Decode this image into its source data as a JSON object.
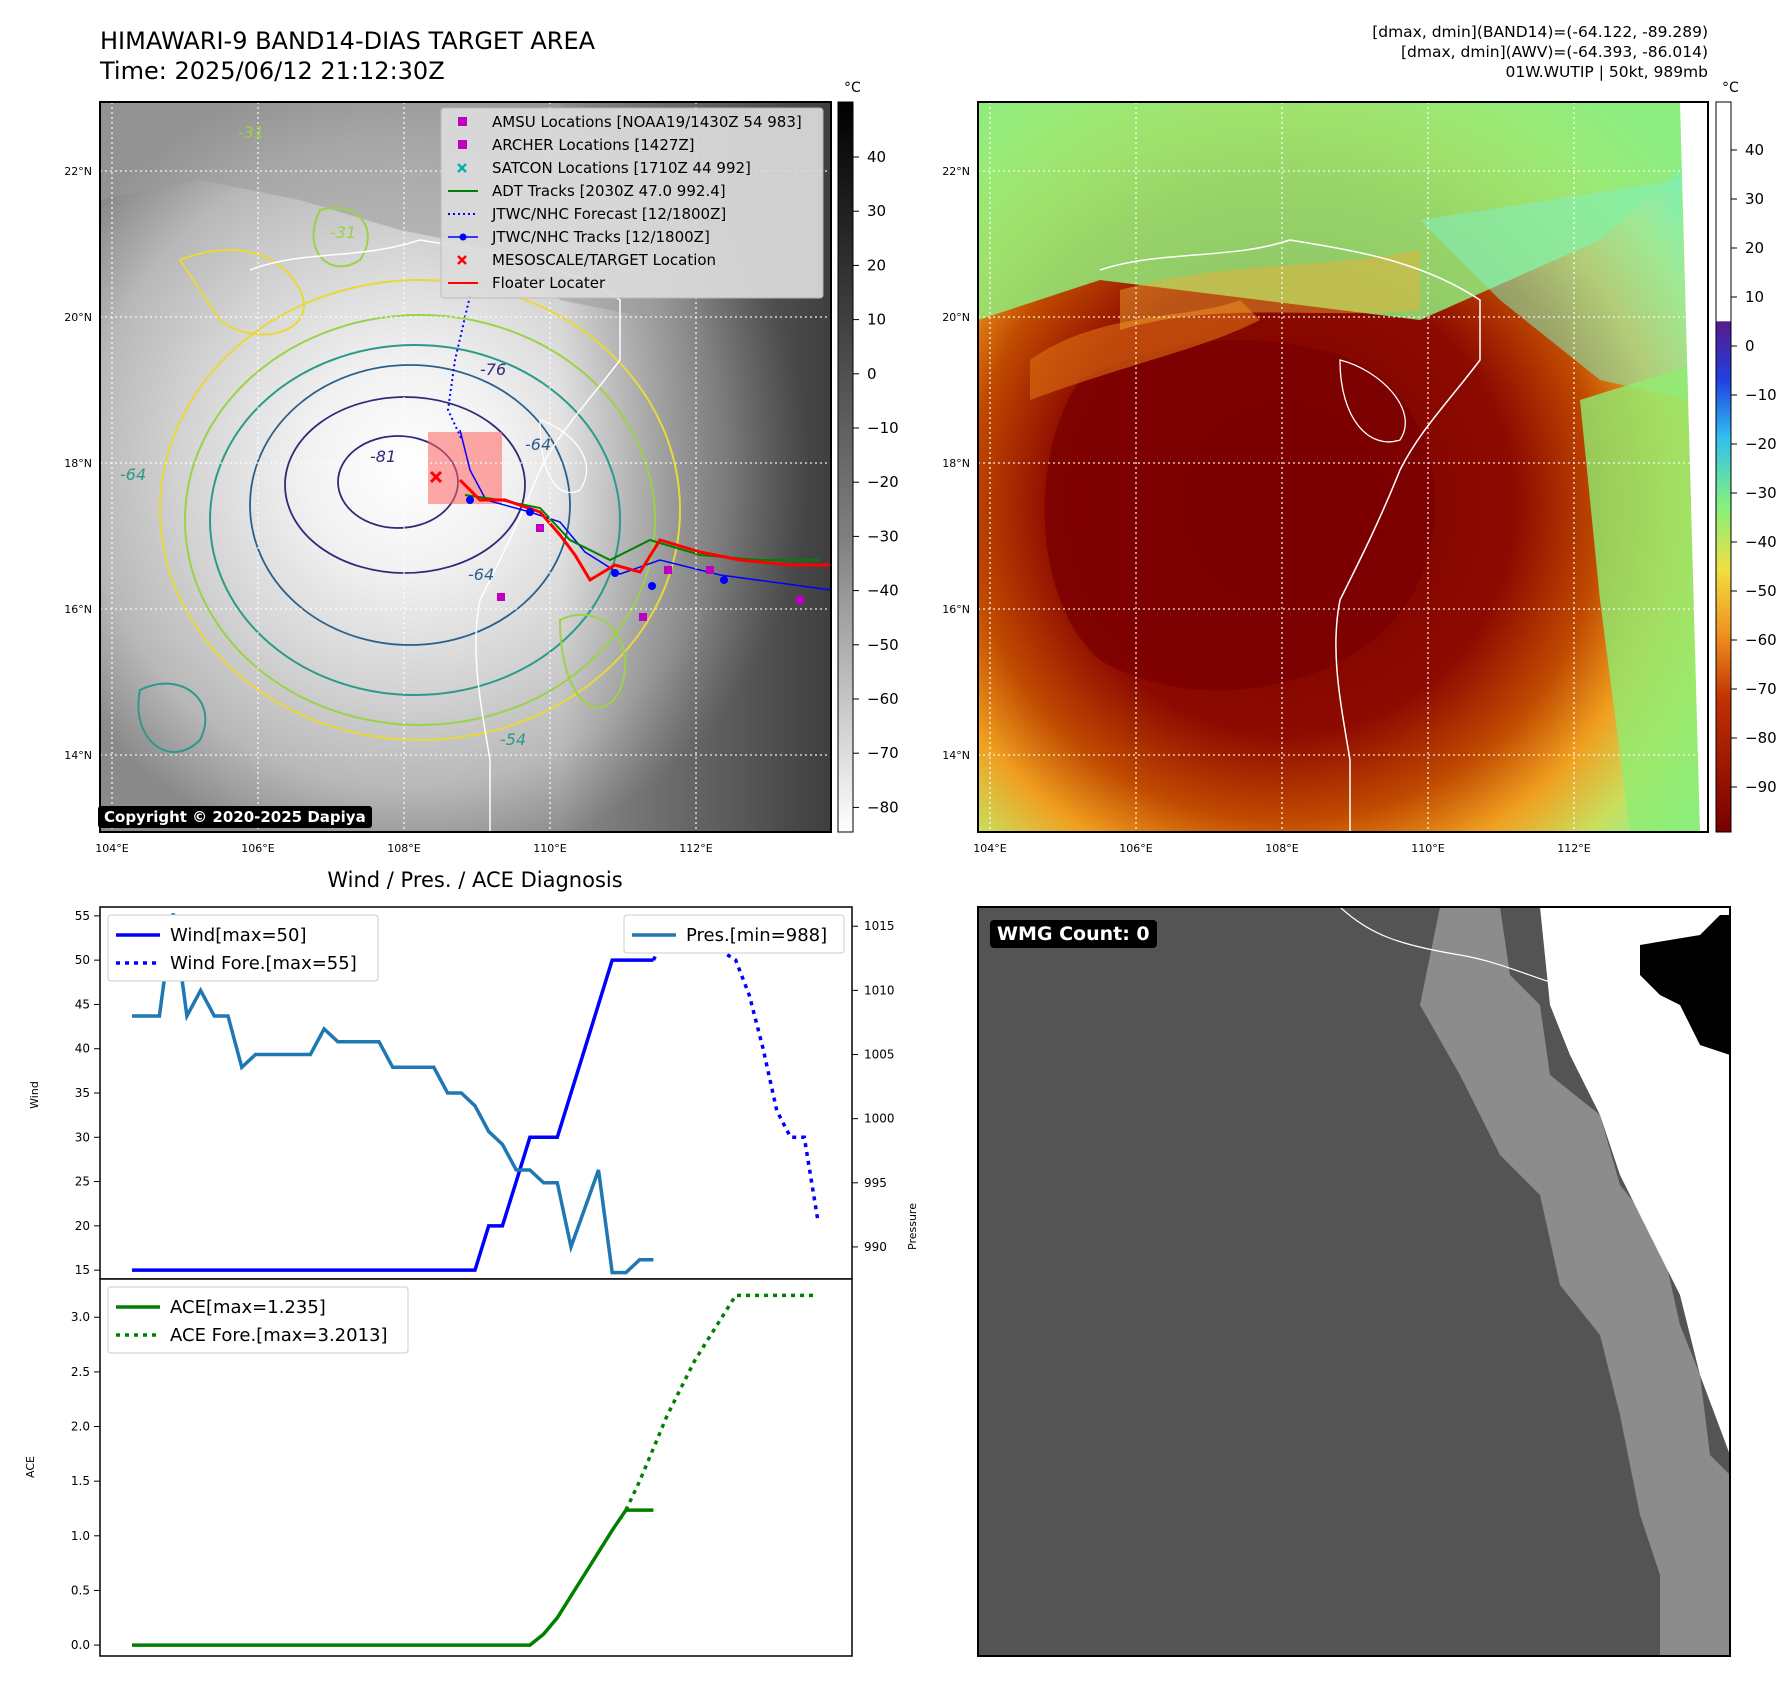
{
  "header": {
    "title_line1": "HIMAWARI-9 BAND14-DIAS TARGET AREA",
    "title_line2": "Time: 2025/06/12 21:12:30Z",
    "info_line1": "[dmax, dmin](BAND14)=(-64.122, -89.289)",
    "info_line2": "[dmax, dmin](AWV)=(-64.393, -86.014)",
    "info_line3": "01W.WUTIP | 50kt, 989mb"
  },
  "map_axes": {
    "lon_labels": [
      "104°E",
      "106°E",
      "108°E",
      "110°E",
      "112°E"
    ],
    "lat_labels": [
      "22°N",
      "20°N",
      "18°N",
      "16°N",
      "14°N"
    ]
  },
  "band14_panel": {
    "colorbar_unit": "°C",
    "colorbar_ticks": [
      "40",
      "30",
      "20",
      "10",
      "0",
      "−10",
      "−20",
      "−30",
      "−40",
      "−50",
      "−60",
      "−70",
      "−80"
    ],
    "copyright": "Copyright © 2020-2025 Dapiya",
    "contour_labels": [
      "-81",
      "-76",
      "-64",
      "-64",
      "-31",
      "-31",
      "-64",
      "-54"
    ],
    "legend": [
      {
        "label": "AMSU Locations [NOAA19/1430Z 54 983]",
        "color": "#c000c0",
        "marker": "square"
      },
      {
        "label": "ARCHER Locations [1427Z]",
        "color": "#c000c0",
        "marker": "square"
      },
      {
        "label": "SATCON Locations [1710Z 44 992]",
        "color": "#00b0b0",
        "marker": "x"
      },
      {
        "label": "ADT Tracks [2030Z 47.0 992.4]",
        "color": "#008000",
        "marker": "line"
      },
      {
        "label": "JTWC/NHC Forecast [12/1800Z]",
        "color": "#0000ff",
        "marker": "dotted"
      },
      {
        "label": "JTWC/NHC Tracks [12/1800Z]",
        "color": "#0000ff",
        "marker": "line-dot"
      },
      {
        "label": "MESOSCALE/TARGET Location",
        "color": "#ff0000",
        "marker": "x"
      },
      {
        "label": "Floater Locater",
        "color": "#ff0000",
        "marker": "line"
      }
    ]
  },
  "awv_panel": {
    "colorbar_unit": "°C",
    "colorbar_ticks": [
      "40",
      "30",
      "20",
      "10",
      "0",
      "−10",
      "−20",
      "−30",
      "−40",
      "−50",
      "−60",
      "−70",
      "−80",
      "−90"
    ]
  },
  "wmg_panel": {
    "label": "WMG Count: 0"
  },
  "chart_data": [
    {
      "type": "line",
      "title": "Wind / Pres. / ACE Diagnosis",
      "ylabel": "Wind",
      "y2label": "Pressure",
      "ylim": [
        14,
        56
      ],
      "y2lim": [
        987.5,
        1016.5
      ],
      "yticks": [
        15,
        20,
        25,
        30,
        35,
        40,
        45,
        50,
        55
      ],
      "y2ticks": [
        990,
        995,
        1000,
        1005,
        1010,
        1015
      ],
      "legend_left": "top-left",
      "legend_right": "top-right",
      "series": [
        {
          "name": "Wind[max=50]",
          "axis": "left",
          "style": "solid",
          "color": "#0000ff",
          "x": [
            0,
            1,
            2,
            3,
            4,
            5,
            6,
            7,
            8,
            9,
            10,
            11,
            12,
            13,
            14,
            15,
            16,
            17,
            18,
            19,
            20,
            21,
            22,
            23,
            24,
            25,
            26,
            27,
            28,
            29,
            30,
            31,
            32,
            33,
            34,
            35,
            36,
            37,
            38
          ],
          "values": [
            15,
            15,
            15,
            15,
            15,
            15,
            15,
            15,
            15,
            15,
            15,
            15,
            15,
            15,
            15,
            15,
            15,
            15,
            15,
            15,
            15,
            15,
            15,
            15,
            15,
            15,
            20,
            20,
            25,
            30,
            30,
            30,
            35,
            40,
            45,
            50,
            50,
            50,
            50
          ]
        },
        {
          "name": "Wind Fore.[max=55]",
          "axis": "left",
          "style": "dotted",
          "color": "#0000ff",
          "x": [
            38,
            39,
            40,
            41,
            42,
            43,
            44,
            45,
            46,
            47,
            48,
            49,
            50
          ],
          "values": [
            50,
            53,
            55,
            53,
            51,
            51,
            50,
            46,
            40,
            33,
            30,
            30,
            20.5
          ]
        },
        {
          "name": "Pres.[min=988]",
          "axis": "right",
          "style": "solid",
          "color": "#1f77b4",
          "x": [
            0,
            1,
            2,
            3,
            4,
            5,
            6,
            7,
            8,
            9,
            10,
            11,
            12,
            13,
            14,
            15,
            16,
            17,
            18,
            19,
            20,
            21,
            22,
            23,
            24,
            25,
            26,
            27,
            28,
            29,
            30,
            31,
            32,
            33,
            34,
            35,
            36,
            37,
            38
          ],
          "values": [
            1008,
            1008,
            1008,
            1016,
            1008,
            1010,
            1008,
            1008,
            1004,
            1005,
            1005,
            1005,
            1005,
            1005,
            1007,
            1006,
            1006,
            1006,
            1006,
            1004,
            1004,
            1004,
            1004,
            1002,
            1002,
            1001,
            999,
            998,
            996,
            996,
            995,
            995,
            990,
            993,
            996,
            988,
            988,
            989,
            989
          ]
        }
      ]
    },
    {
      "type": "line",
      "ylabel": "ACE",
      "ylim": [
        -0.1,
        3.35
      ],
      "yticks": [
        0.0,
        0.5,
        1.0,
        1.5,
        2.0,
        2.5,
        3.0
      ],
      "ytick_labels": [
        "0.0",
        "0.5",
        "1.0",
        "1.5",
        "2.0",
        "2.5",
        "3.0"
      ],
      "legend": "top-left",
      "series": [
        {
          "name": "ACE[max=1.235]",
          "style": "solid",
          "color": "#008000",
          "x": [
            0,
            5,
            10,
            15,
            20,
            25,
            28,
            29,
            30,
            31,
            32,
            33,
            34,
            35,
            36,
            37,
            38
          ],
          "values": [
            0,
            0,
            0,
            0,
            0,
            0,
            0,
            0,
            0.1,
            0.25,
            0.45,
            0.65,
            0.85,
            1.05,
            1.235,
            1.235,
            1.235
          ]
        },
        {
          "name": "ACE Fore.[max=3.2013]",
          "style": "dotted",
          "color": "#008000",
          "x": [
            36,
            37,
            38,
            39,
            40,
            41,
            42,
            43,
            44,
            45,
            46,
            47,
            48,
            49,
            50
          ],
          "values": [
            1.235,
            1.5,
            1.8,
            2.1,
            2.35,
            2.6,
            2.8,
            3.0,
            3.2,
            3.2,
            3.2,
            3.2,
            3.2,
            3.2,
            3.2
          ]
        }
      ]
    }
  ]
}
